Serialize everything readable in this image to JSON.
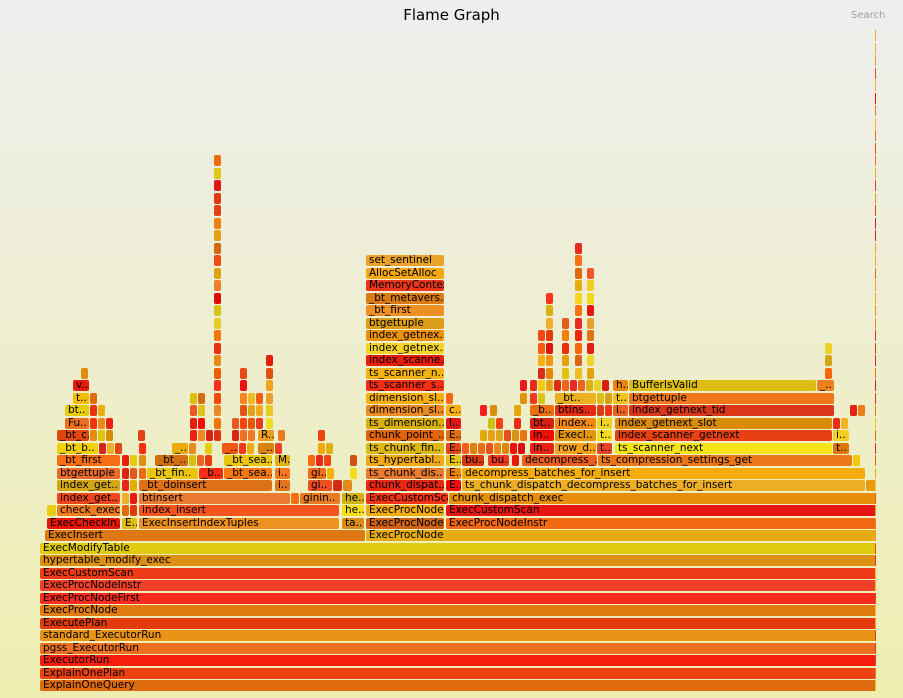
{
  "header": {
    "title": "Flame Graph",
    "search_label": "Search"
  },
  "chart_data": {
    "type": "flamegraph",
    "title": "Flame Graph",
    "total_samples": 837,
    "frame_format": [
      "label",
      "depth",
      "start_sample",
      "width_samples"
    ],
    "frames": [
      [
        "ExplainOneQuery",
        0,
        0,
        837
      ],
      [
        "ExplainOnePlan",
        1,
        0,
        837
      ],
      [
        "ExecutorRun",
        2,
        0,
        837
      ],
      [
        "pgss_ExecutorRun",
        3,
        0,
        837
      ],
      [
        "standard_ExecutorRun",
        4,
        0,
        837
      ],
      [
        "ExecutePlan",
        5,
        0,
        837
      ],
      [
        "ExecProcNode",
        6,
        0,
        837
      ],
      [
        "ExecProcNodeFirst",
        7,
        0,
        837
      ],
      [
        "ExecProcNodeInstr",
        8,
        0,
        837
      ],
      [
        "ExecCustomScan",
        9,
        0,
        837
      ],
      [
        "hypertable_modify_exec",
        10,
        0,
        837
      ],
      [
        "ExecModifyTable",
        11,
        0,
        837
      ],
      [
        "ExecInsert",
        12,
        5,
        321
      ],
      [
        "ExecProcNode",
        12,
        326,
        511
      ],
      [
        "ExecCheckIn..",
        13,
        7,
        74
      ],
      [
        "E..",
        13,
        82,
        16
      ],
      [
        "ExecInsertIndexTuples",
        13,
        99,
        201
      ],
      [
        "ta..",
        13,
        302,
        23
      ],
      [
        "ExecProcNode..",
        13,
        326,
        79
      ],
      [
        "ExecProcNodeInstr",
        13,
        406,
        431
      ],
      [
        "",
        14,
        7,
        10
      ],
      [
        "check_exec..",
        14,
        17,
        64
      ],
      [
        "",
        14,
        82,
        8
      ],
      [
        "",
        14,
        90,
        8
      ],
      [
        "index_insert",
        14,
        99,
        201
      ],
      [
        "he..",
        14,
        302,
        23
      ],
      [
        "ExecProcNode..",
        14,
        326,
        79
      ],
      [
        "ExecCustomScan",
        14,
        406,
        431
      ],
      [
        "index_get..",
        15,
        17,
        64
      ],
      [
        "",
        15,
        82,
        8
      ],
      [
        "",
        15,
        90,
        8
      ],
      [
        "btinsert",
        15,
        99,
        152
      ],
      [
        "",
        15,
        251,
        9
      ],
      [
        "ginin..",
        15,
        260,
        41
      ],
      [
        "he..",
        15,
        302,
        23
      ],
      [
        "ExecCustomScan",
        15,
        326,
        83
      ],
      [
        "chunk_dispatch_exec",
        15,
        409,
        428
      ],
      [
        "index_get..",
        16,
        17,
        64
      ],
      [
        "",
        16,
        82,
        8
      ],
      [
        "",
        16,
        90,
        8
      ],
      [
        "_bt_doinsert",
        16,
        99,
        134
      ],
      [
        "i..",
        16,
        235,
        16
      ],
      [
        "gi..",
        16,
        268,
        25
      ],
      [
        "",
        16,
        293,
        10
      ],
      [
        "",
        16,
        303,
        10
      ],
      [
        "chunk_dispat..",
        16,
        326,
        79
      ],
      [
        "E..",
        16,
        406,
        16
      ],
      [
        "ts_chunk_dispatch_decompress_batches_for_insert",
        16,
        422,
        404
      ],
      [
        "",
        16,
        826,
        11
      ],
      [
        "btgettuple",
        17,
        17,
        64
      ],
      [
        "",
        17,
        82,
        8
      ],
      [
        "",
        17,
        90,
        8
      ],
      [
        "",
        17,
        99,
        8
      ],
      [
        "_bt_fin..",
        17,
        107,
        52
      ],
      [
        "_b..",
        17,
        159,
        25
      ],
      [
        "_bt_sea..",
        17,
        184,
        49
      ],
      [
        "i..",
        17,
        235,
        16
      ],
      [
        "gi..",
        17,
        268,
        19
      ],
      [
        "",
        17,
        287,
        8
      ],
      [
        "",
        17,
        310,
        8
      ],
      [
        "ts_chunk_dis..",
        17,
        326,
        79
      ],
      [
        "E..",
        17,
        406,
        16
      ],
      [
        "decompress_batches_for_insert",
        17,
        422,
        404
      ],
      [
        "_bt_first",
        18,
        17,
        64
      ],
      [
        "",
        18,
        82,
        8
      ],
      [
        "",
        18,
        90,
        8
      ],
      [
        "",
        18,
        99,
        8
      ],
      [
        "_bt_..",
        18,
        115,
        34
      ],
      [
        "",
        18,
        149,
        8
      ],
      [
        "",
        18,
        157,
        8
      ],
      [
        "",
        18,
        165,
        8
      ],
      [
        "_bt_sea..",
        18,
        184,
        49
      ],
      [
        "M..",
        18,
        235,
        16
      ],
      [
        "",
        18,
        268,
        8
      ],
      [
        "",
        18,
        276,
        8
      ],
      [
        "",
        18,
        284,
        8
      ],
      [
        "",
        18,
        310,
        8
      ],
      [
        "ts_hypertabl..",
        18,
        326,
        79
      ],
      [
        "E..",
        18,
        406,
        16
      ],
      [
        "bu..",
        18,
        422,
        23
      ],
      [
        "bu..",
        18,
        448,
        22
      ],
      [
        "",
        18,
        472,
        8
      ],
      [
        "decompress_..",
        18,
        482,
        76
      ],
      [
        "ts_compression_settings_get",
        18,
        558,
        255
      ],
      [
        "",
        18,
        813,
        8
      ],
      [
        "_bt_b..",
        19,
        17,
        42
      ],
      [
        "",
        19,
        59,
        8
      ],
      [
        "",
        19,
        67,
        8
      ],
      [
        "",
        19,
        75,
        8
      ],
      [
        "",
        19,
        99,
        8
      ],
      [
        "_..",
        19,
        132,
        17
      ],
      [
        "",
        19,
        149,
        8
      ],
      [
        "",
        19,
        165,
        8
      ],
      [
        "_..",
        19,
        182,
        17
      ],
      [
        "",
        19,
        199,
        8
      ],
      [
        "",
        19,
        207,
        8
      ],
      [
        "_..",
        19,
        218,
        17
      ],
      [
        "",
        19,
        235,
        8
      ],
      [
        "",
        19,
        278,
        8
      ],
      [
        "",
        19,
        286,
        8
      ],
      [
        "ts_chunk_fin..",
        19,
        326,
        79
      ],
      [
        "E..",
        19,
        406,
        16
      ],
      [
        "",
        19,
        422,
        8
      ],
      [
        "",
        19,
        430,
        8
      ],
      [
        "",
        19,
        438,
        8
      ],
      [
        "",
        19,
        446,
        8
      ],
      [
        "",
        19,
        454,
        8
      ],
      [
        "",
        19,
        462,
        8
      ],
      [
        "",
        19,
        470,
        8
      ],
      [
        "",
        19,
        478,
        8
      ],
      [
        "in..",
        19,
        490,
        25
      ],
      [
        "row_d..",
        19,
        515,
        42
      ],
      [
        "t..",
        19,
        557,
        16
      ],
      [
        "ts_scanner_next",
        19,
        575,
        218
      ],
      [
        "t..",
        19,
        793,
        17
      ],
      [
        "_bt_c..",
        20,
        17,
        33
      ],
      [
        "",
        20,
        50,
        8
      ],
      [
        "",
        20,
        58,
        8
      ],
      [
        "",
        20,
        66,
        8
      ],
      [
        "",
        20,
        98,
        8
      ],
      [
        "",
        20,
        150,
        8
      ],
      [
        "",
        20,
        158,
        8
      ],
      [
        "",
        20,
        166,
        8
      ],
      [
        "",
        20,
        174,
        8
      ],
      [
        "",
        20,
        192,
        8
      ],
      [
        "",
        20,
        200,
        8
      ],
      [
        "",
        20,
        208,
        8
      ],
      [
        "R..",
        20,
        218,
        17
      ],
      [
        "",
        20,
        238,
        8
      ],
      [
        "",
        20,
        278,
        8
      ],
      [
        "chunk_point_..",
        20,
        326,
        79
      ],
      [
        "E..",
        20,
        406,
        16
      ],
      [
        "",
        20,
        440,
        8
      ],
      [
        "",
        20,
        448,
        8
      ],
      [
        "",
        20,
        456,
        8
      ],
      [
        "",
        20,
        464,
        8
      ],
      [
        "",
        20,
        472,
        8
      ],
      [
        "",
        20,
        480,
        8
      ],
      [
        "in..",
        20,
        490,
        25
      ],
      [
        "ExecI..",
        20,
        515,
        42
      ],
      [
        "t..",
        20,
        557,
        16
      ],
      [
        "index_scanner_getnext",
        20,
        575,
        218
      ],
      [
        "i..",
        20,
        793,
        17
      ],
      [
        "Fu..",
        21,
        25,
        25
      ],
      [
        "",
        21,
        50,
        8
      ],
      [
        "",
        21,
        58,
        8
      ],
      [
        "",
        21,
        66,
        8
      ],
      [
        "",
        21,
        150,
        8
      ],
      [
        "",
        21,
        158,
        8
      ],
      [
        "",
        21,
        192,
        8
      ],
      [
        "",
        21,
        200,
        8
      ],
      [
        "",
        21,
        208,
        8
      ],
      [
        "",
        21,
        216,
        8
      ],
      [
        "ts_dimension..",
        21,
        326,
        79
      ],
      [
        "I..",
        21,
        406,
        16
      ],
      [
        "",
        21,
        448,
        8
      ],
      [
        "",
        21,
        456,
        8
      ],
      [
        "",
        21,
        474,
        8
      ],
      [
        "bt..",
        21,
        490,
        25
      ],
      [
        "index..",
        21,
        515,
        42
      ],
      [
        "i..",
        21,
        557,
        16
      ],
      [
        "index_getnext_slot",
        21,
        575,
        218
      ],
      [
        "",
        21,
        793,
        8
      ],
      [
        "",
        21,
        801,
        8
      ],
      [
        "bt..",
        22,
        25,
        25
      ],
      [
        "",
        22,
        50,
        8
      ],
      [
        "",
        22,
        58,
        8
      ],
      [
        "",
        22,
        150,
        8
      ],
      [
        "",
        22,
        158,
        8
      ],
      [
        "",
        22,
        200,
        8
      ],
      [
        "",
        22,
        208,
        8
      ],
      [
        "",
        22,
        216,
        8
      ],
      [
        "dimension_sl..",
        22,
        326,
        79
      ],
      [
        "c..",
        22,
        406,
        16
      ],
      [
        "",
        22,
        450,
        8
      ],
      [
        "",
        22,
        474,
        8
      ],
      [
        "_b..",
        22,
        490,
        25
      ],
      [
        "btins..",
        22,
        515,
        42
      ],
      [
        "",
        22,
        557,
        8
      ],
      [
        "",
        22,
        565,
        8
      ],
      [
        "i..",
        22,
        573,
        16
      ],
      [
        "index_getnext_tid",
        22,
        589,
        206
      ],
      [
        "",
        22,
        810,
        8
      ],
      [
        "",
        22,
        818,
        8
      ],
      [
        "t..",
        23,
        33,
        17
      ],
      [
        "",
        23,
        50,
        8
      ],
      [
        "",
        23,
        150,
        8
      ],
      [
        "",
        23,
        158,
        8
      ],
      [
        "",
        23,
        200,
        8
      ],
      [
        "",
        23,
        208,
        8
      ],
      [
        "",
        23,
        216,
        8
      ],
      [
        "dimension_sl..",
        23,
        326,
        79
      ],
      [
        "",
        23,
        406,
        8
      ],
      [
        "",
        23,
        480,
        8
      ],
      [
        "",
        23,
        490,
        8
      ],
      [
        "",
        23,
        498,
        8
      ],
      [
        "_bt..",
        23,
        515,
        42
      ],
      [
        "",
        23,
        557,
        8
      ],
      [
        "",
        23,
        565,
        8
      ],
      [
        "t..",
        23,
        573,
        16
      ],
      [
        "btgettuple",
        23,
        589,
        206
      ],
      [
        "v..",
        24,
        33,
        17
      ],
      [
        "ts_scanner_s..",
        24,
        326,
        79
      ],
      [
        "",
        24,
        480,
        8
      ],
      [
        "",
        24,
        490,
        8
      ],
      [
        "",
        24,
        498,
        8
      ],
      [
        "",
        24,
        506,
        8
      ],
      [
        "",
        24,
        514,
        8
      ],
      [
        "",
        24,
        522,
        8
      ],
      [
        "",
        24,
        530,
        8
      ],
      [
        "",
        24,
        538,
        8
      ],
      [
        "",
        24,
        546,
        8
      ],
      [
        "",
        24,
        554,
        8
      ],
      [
        "",
        24,
        562,
        8
      ],
      [
        "h..",
        24,
        573,
        16
      ],
      [
        "BufferIsValid",
        24,
        589,
        188
      ],
      [
        "_..",
        24,
        777,
        18
      ],
      [
        "ts_scanner_n..",
        25,
        326,
        79
      ],
      [
        "index_scanne..",
        26,
        326,
        79
      ],
      [
        "index_getnex..",
        27,
        326,
        79
      ],
      [
        "index_getnex..",
        28,
        326,
        79
      ],
      [
        "btgettuple",
        29,
        326,
        79
      ],
      [
        "_bt_first",
        30,
        326,
        79
      ],
      [
        "_bt_metavers..",
        31,
        326,
        79
      ],
      [
        "MemoryContex..",
        32,
        326,
        79
      ],
      [
        "AllocSetAlloc",
        33,
        326,
        79
      ],
      [
        "set_sentinel",
        34,
        326,
        79
      ]
    ],
    "towers_format": [
      "start_sample",
      "width_samples",
      "from_depth",
      "to_depth"
    ],
    "towers": [
      [
        174,
        8,
        21,
        42
      ],
      [
        226,
        8,
        21,
        26
      ],
      [
        200,
        8,
        22,
        25
      ],
      [
        41,
        8,
        25,
        25
      ],
      [
        506,
        8,
        25,
        31
      ],
      [
        535,
        8,
        25,
        35
      ],
      [
        547,
        8,
        25,
        33
      ],
      [
        785,
        8,
        25,
        27
      ],
      [
        498,
        8,
        25,
        28
      ],
      [
        522,
        8,
        25,
        29
      ],
      [
        440,
        8,
        22,
        22
      ],
      [
        835,
        2,
        0,
        52
      ]
    ]
  }
}
